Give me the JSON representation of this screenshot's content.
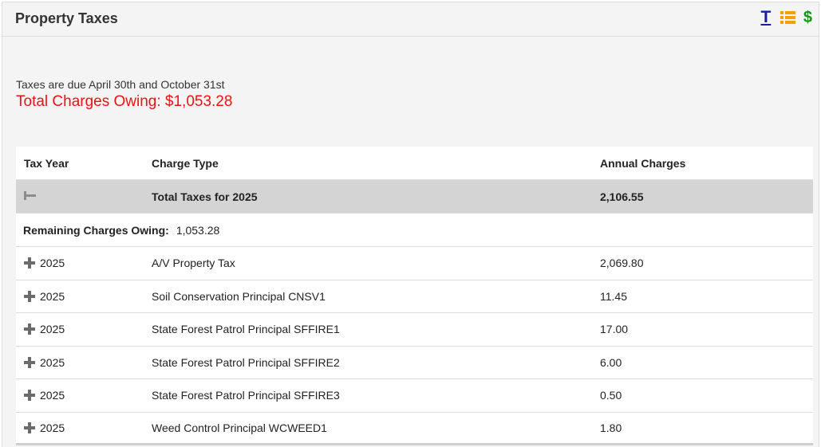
{
  "panel": {
    "title": "Property Taxes",
    "icons": [
      "text-icon",
      "list-icon",
      "dollar-icon"
    ],
    "icon_labels": {
      "text": "T",
      "dollar": "$"
    },
    "colors": {
      "text_icon": "#1a1aa6",
      "list_icon": "#f5a000",
      "dollar_icon": "#149414"
    }
  },
  "summary": {
    "due_text": "Taxes are due April 30th and October 31st",
    "total_owing": "Total Charges Owing: $1,053.28",
    "total_owing_color": "#ee1111"
  },
  "table": {
    "headers": {
      "tax_year": "Tax Year",
      "charge_type": "Charge Type",
      "annual_charges": "Annual Charges"
    },
    "total_row": {
      "label": "Total Taxes for 2025",
      "amount": "2,106.55"
    },
    "remaining": {
      "label": "Remaining Charges Owing:",
      "amount": "1,053.28"
    },
    "rows": [
      {
        "year": "2025",
        "charge_type": "A/V Property Tax",
        "amount": "2,069.80"
      },
      {
        "year": "2025",
        "charge_type": "Soil Conservation Principal CNSV1",
        "amount": "11.45"
      },
      {
        "year": "2025",
        "charge_type": "State Forest Patrol Principal SFFIRE1",
        "amount": "17.00"
      },
      {
        "year": "2025",
        "charge_type": "State Forest Patrol Principal SFFIRE2",
        "amount": "6.00"
      },
      {
        "year": "2025",
        "charge_type": "State Forest Patrol Principal SFFIRE3",
        "amount": "0.50"
      },
      {
        "year": "2025",
        "charge_type": "Weed Control Principal WCWEED1",
        "amount": "1.80"
      }
    ]
  }
}
